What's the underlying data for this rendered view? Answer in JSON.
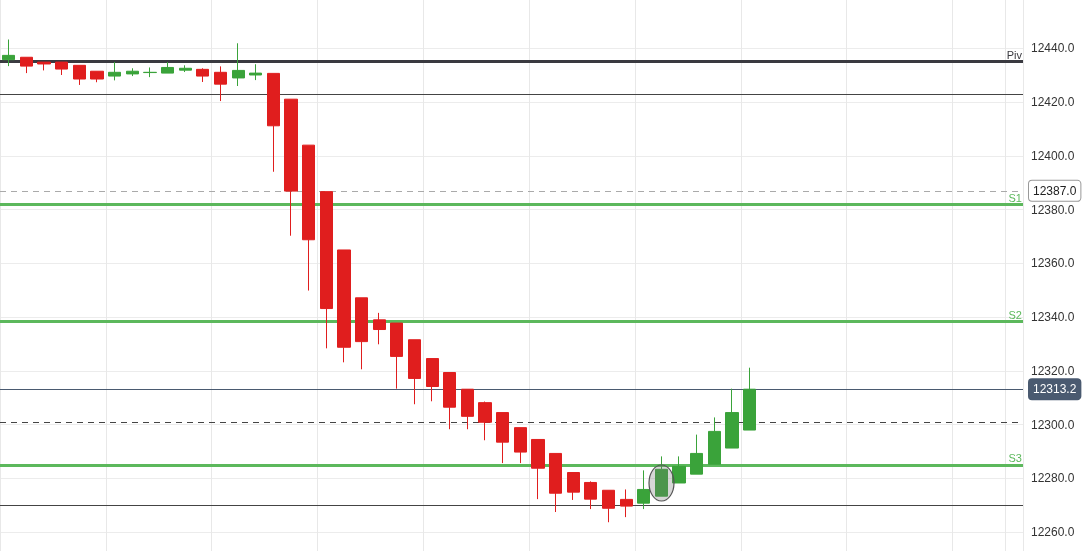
{
  "chart_data": {
    "type": "candlestick",
    "categories": [
      null,
      null,
      null,
      null,
      null,
      null,
      null,
      null,
      null,
      null,
      null,
      null,
      null,
      null,
      null,
      null,
      null,
      null,
      null,
      null,
      null,
      null,
      null,
      null,
      null,
      null,
      null,
      null,
      null,
      null,
      null,
      null,
      null,
      null,
      null,
      null,
      null,
      null,
      null,
      null,
      null,
      null,
      null,
      null,
      null,
      null,
      null,
      null,
      null,
      null,
      null,
      null,
      null,
      null,
      null,
      null,
      null,
      null
    ],
    "ohlc": [
      [
        12435.8,
        12443.3,
        12433.4,
        12437.4
      ],
      [
        12436.7,
        12436.7,
        12430.8,
        12433.4
      ],
      [
        12434.9,
        12434.9,
        12431.8,
        12434.2
      ],
      [
        12434.9,
        12434.9,
        12430.1,
        12432.3
      ],
      [
        12433.7,
        12433.7,
        12426.4,
        12428.6
      ],
      [
        12431.5,
        12431.5,
        12427.4,
        12428.6
      ],
      [
        12429.7,
        12434.9,
        12428.1,
        12431.1
      ],
      [
        12430.5,
        12432.6,
        12429.7,
        12431.5
      ],
      [
        12431.0,
        12432.9,
        12429.3,
        12431.1
      ],
      [
        12430.8,
        12434.9,
        12430.8,
        12432.9
      ],
      [
        12431.9,
        12433.7,
        12431.2,
        12432.6
      ],
      [
        12432.2,
        12432.6,
        12427.5,
        12429.7
      ],
      [
        12431.1,
        12433.3,
        12420.4,
        12426.7
      ],
      [
        12429.0,
        12441.9,
        12426.0,
        12431.8
      ],
      [
        12430.1,
        12434.1,
        12428.2,
        12430.8
      ],
      [
        12430.7,
        12430.7,
        12394.1,
        12411.2
      ],
      [
        12421.1,
        12421.1,
        12370.3,
        12386.9
      ],
      [
        12404.0,
        12404.0,
        12349.9,
        12368.8
      ],
      [
        12386.7,
        12386.7,
        12328.4,
        12343.2
      ],
      [
        12365.0,
        12365.0,
        12323.2,
        12328.8
      ],
      [
        12347.2,
        12347.2,
        12320.6,
        12330.9
      ],
      [
        12339.0,
        12341.6,
        12329.9,
        12335.4
      ],
      [
        12337.8,
        12337.8,
        12313.4,
        12325.4
      ],
      [
        12331.6,
        12331.6,
        12307.6,
        12317.2
      ],
      [
        12324.6,
        12324.6,
        12308.7,
        12314.2
      ],
      [
        12319.4,
        12319.4,
        12298.3,
        12306.5
      ],
      [
        12313.2,
        12313.2,
        12298.3,
        12303.1
      ],
      [
        12308.2,
        12308.6,
        12294.2,
        12300.9
      ],
      [
        12304.5,
        12304.5,
        12285.7,
        12293.5
      ],
      [
        12298.9,
        12298.9,
        12285.7,
        12289.8
      ],
      [
        12294.5,
        12294.5,
        12272.3,
        12283.8
      ],
      [
        12289.3,
        12289.3,
        12267.5,
        12274.5
      ],
      [
        12282.2,
        12282.2,
        12272.0,
        12274.9
      ],
      [
        12278.5,
        12278.9,
        12268.6,
        12272.3
      ],
      [
        12275.6,
        12275.6,
        12263.7,
        12268.9
      ],
      [
        12272.2,
        12275.9,
        12265.6,
        12269.7
      ],
      [
        12270.8,
        12283.0,
        12268.6,
        12275.9
      ],
      [
        12273.4,
        12288.2,
        12273.4,
        12283.4
      ],
      [
        12278.3,
        12288.2,
        12278.3,
        12284.5
      ],
      [
        12281.6,
        12296.3,
        12281.6,
        12289.3
      ],
      [
        12285.3,
        12302.7,
        12285.3,
        12297.5
      ],
      [
        12291.3,
        12313.4,
        12291.3,
        12304.5
      ],
      [
        12298.0,
        12321.2,
        12298.0,
        12313.2
      ],
      null,
      null,
      null,
      null,
      null,
      null,
      null,
      null,
      null,
      null,
      null,
      null,
      null,
      null,
      null
    ],
    "colors": [
      "#3aa33a",
      "#e01e1e",
      "#e01e1e",
      "#e01e1e",
      "#e01e1e",
      "#e01e1e",
      "#3aa33a",
      "#3aa33a",
      "#3aa33a",
      "#3aa33a",
      "#3aa33a",
      "#e01e1e",
      "#e01e1e",
      "#3aa33a",
      "#3aa33a",
      "#e01e1e",
      "#e01e1e",
      "#e01e1e",
      "#e01e1e",
      "#e01e1e",
      "#e01e1e",
      "#e01e1e",
      "#e01e1e",
      "#e01e1e",
      "#e01e1e",
      "#e01e1e",
      "#e01e1e",
      "#e01e1e",
      "#e01e1e",
      "#e01e1e",
      "#e01e1e",
      "#e01e1e",
      "#e01e1e",
      "#e01e1e",
      "#e01e1e",
      "#e01e1e",
      "#3aa33a",
      "#3aa33a",
      "#3aa33a",
      "#3aa33a",
      "#3aa33a",
      "#3aa33a",
      "#3aa33a",
      null,
      null,
      null,
      null,
      null,
      null,
      null,
      null,
      null,
      null,
      null,
      null,
      null,
      null,
      null
    ],
    "ylim": [
      12253,
      12458
    ],
    "yticks": [
      {
        "value": 12260,
        "label": "12260.0"
      },
      {
        "value": 12280,
        "label": "12280.0"
      },
      {
        "value": 12300,
        "label": "12300.0"
      },
      {
        "value": 12320,
        "label": "12320.0"
      },
      {
        "value": 12340,
        "label": "12340.0"
      },
      {
        "value": 12360,
        "label": "12360.0"
      },
      {
        "value": 12380,
        "label": "12380.0"
      },
      {
        "value": 12400,
        "label": "12400.0"
      },
      {
        "value": 12420,
        "label": "12420.0"
      },
      {
        "value": 12440,
        "label": "12440.0"
      }
    ],
    "tick_labels": "y",
    "grid": true,
    "ref_lines": [
      {
        "axis": "y",
        "value": 12435.2,
        "label": "Piv",
        "color": "#3a3a40",
        "line_style": "solid"
      },
      {
        "axis": "y",
        "value": 12423,
        "label": null,
        "color": "#444444",
        "line_style": "solid"
      },
      {
        "axis": "y",
        "value": 12387,
        "label": "12387.0",
        "color": "#aaaaaa",
        "line_style": "dashed"
      },
      {
        "axis": "y",
        "value": 12382,
        "label": "S1",
        "color": "#5cb85c",
        "line_style": "solid"
      },
      {
        "axis": "y",
        "value": 12338.3,
        "label": "S2",
        "color": "#5cb85c",
        "line_style": "solid"
      },
      {
        "axis": "y",
        "value": 12313.2,
        "label": "12313.2",
        "color": "#4a5a70",
        "line_style": "solid"
      },
      {
        "axis": "y",
        "value": 12301,
        "label": null,
        "color": "#444444",
        "line_style": "dashed"
      },
      {
        "axis": "y",
        "value": 12285,
        "label": "S3",
        "color": "#5cb85c",
        "line_style": "solid"
      },
      {
        "axis": "y",
        "value": 12270,
        "label": null,
        "color": "#444444",
        "line_style": "solid"
      }
    ]
  }
}
